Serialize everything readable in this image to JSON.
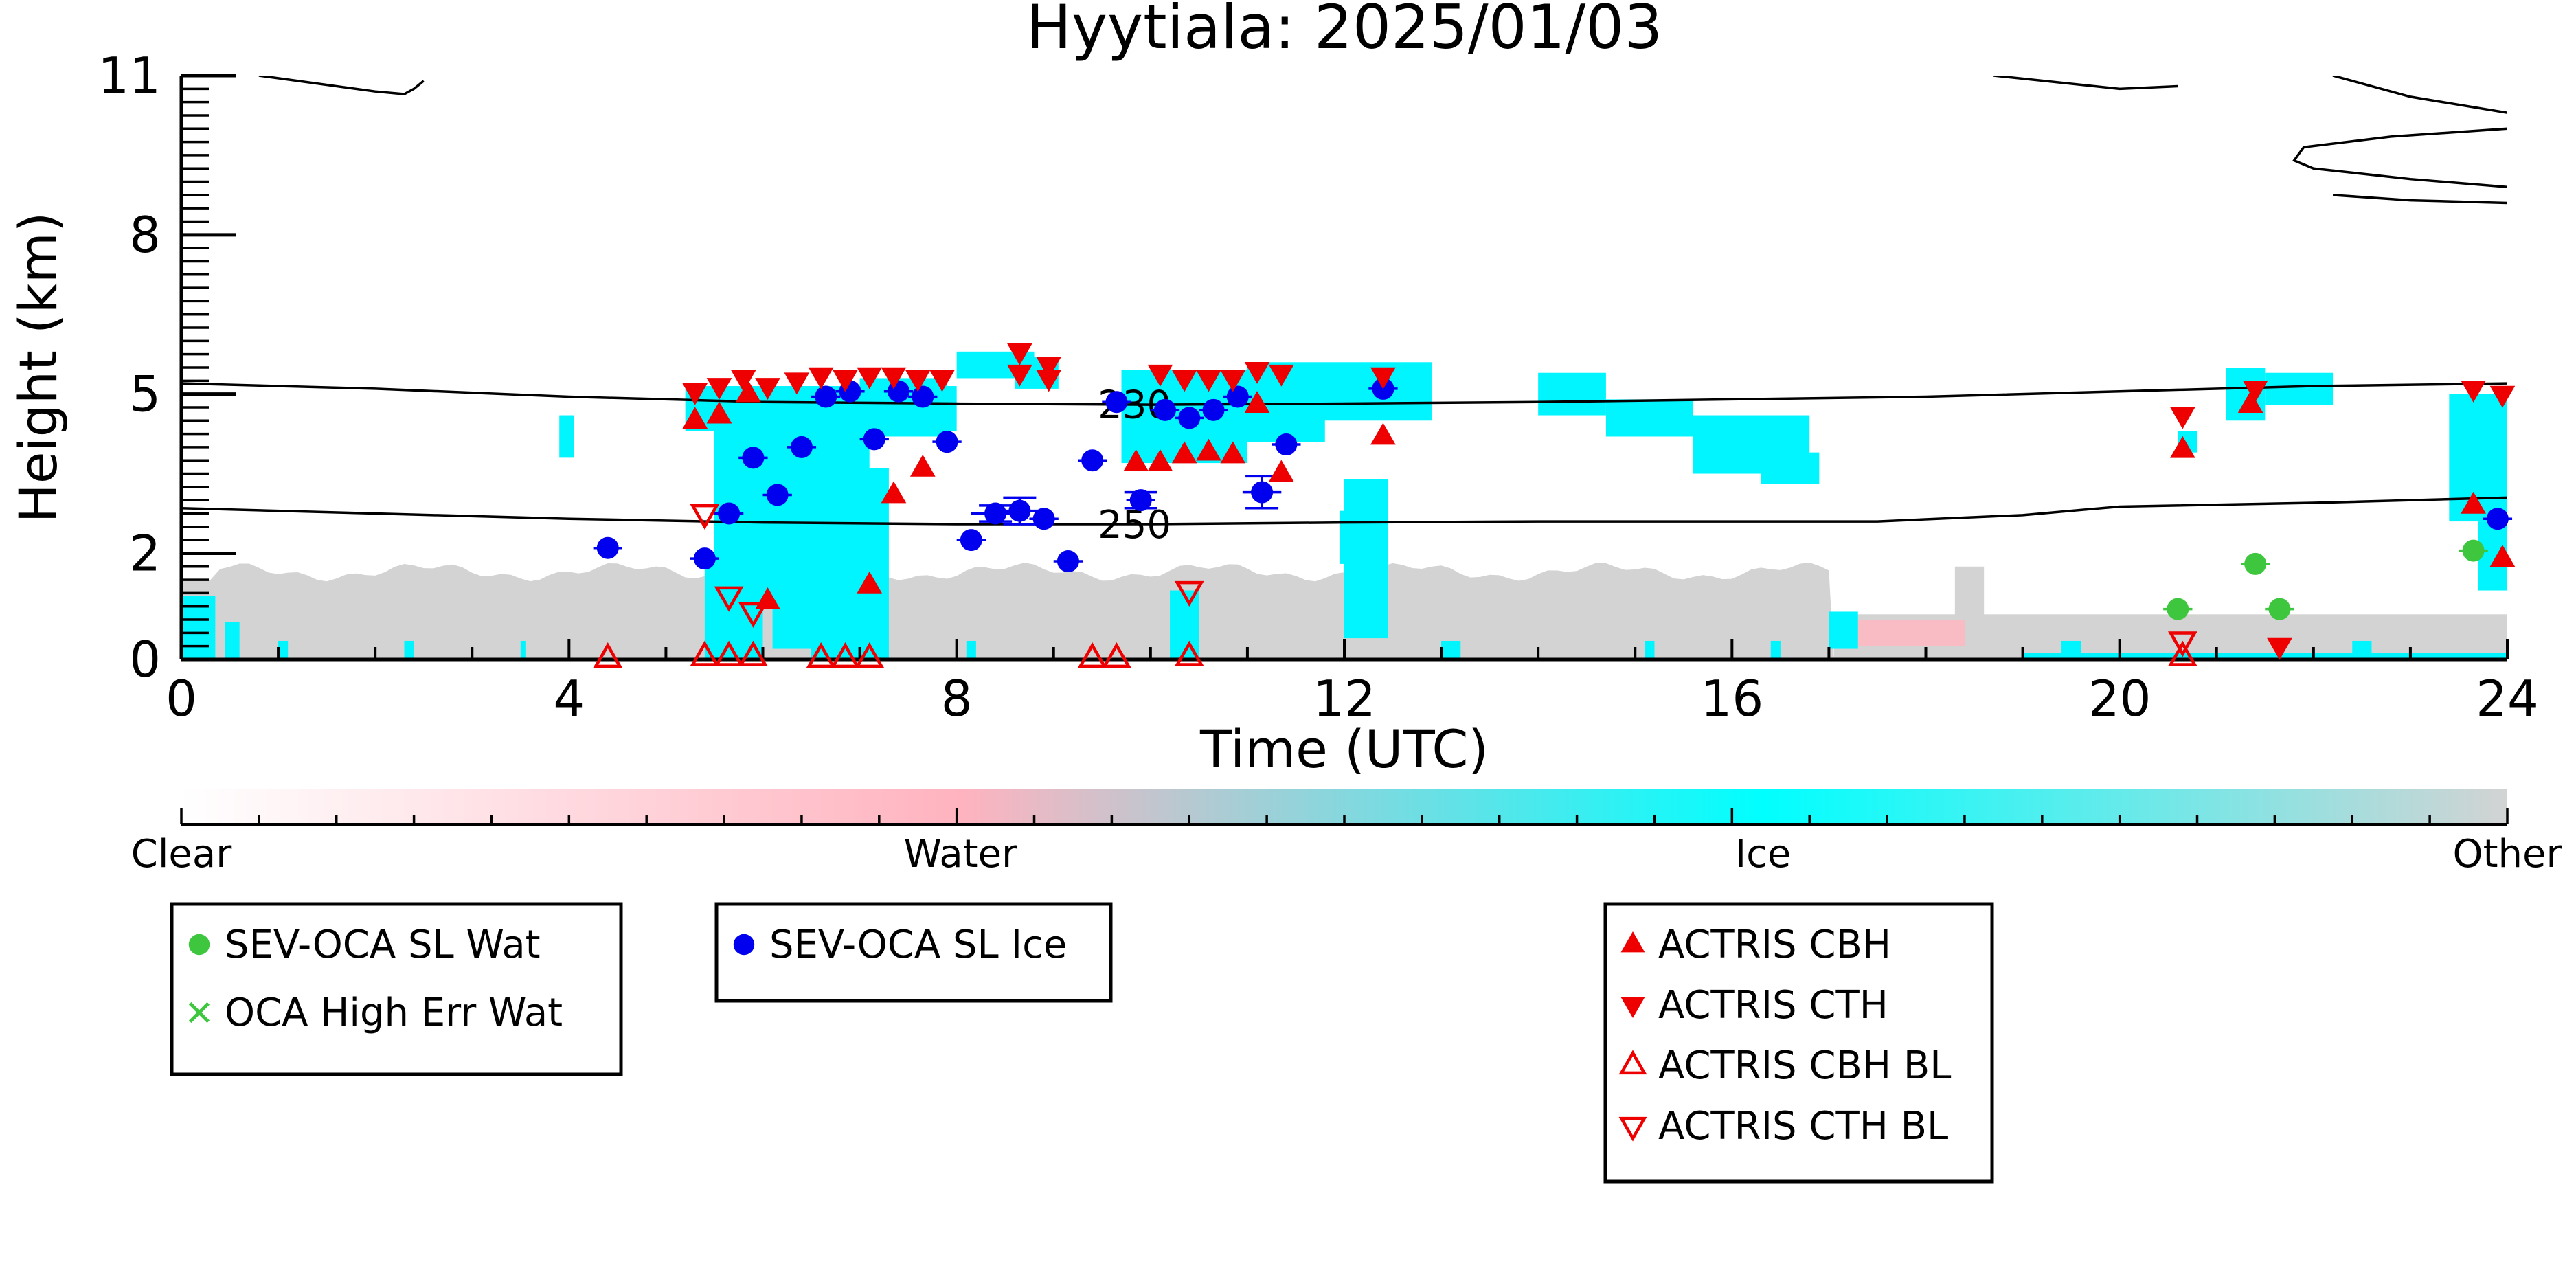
{
  "chart_data": {
    "type": "scatter",
    "title": "Hyytiala: 2025/01/03",
    "xlabel": "Time (UTC)",
    "ylabel": "Height (km)",
    "xlim": [
      0,
      24
    ],
    "ylim": [
      0,
      11
    ],
    "x_ticks": [
      0,
      4,
      8,
      12,
      16,
      20,
      24
    ],
    "y_ticks": [
      0,
      2,
      5,
      8,
      11
    ],
    "colorbar": {
      "labels": [
        "Clear",
        "Water",
        "Ice",
        "Other"
      ],
      "stops": [
        {
          "label": "Clear",
          "color": "#ffffff"
        },
        {
          "label": "Water",
          "color": "#ffb3bf"
        },
        {
          "label": "Ice",
          "color": "#00ffff"
        },
        {
          "label": "Other",
          "color": "#d3d3d3"
        }
      ]
    },
    "colors": {
      "clear": "#ffffff",
      "water": "#ffb6c1",
      "ice": "#00f5ff",
      "other": "#d3d3d3",
      "sev_water": "#3ec63e",
      "sev_ice": "#0000ee",
      "actris": "#ee0000"
    },
    "contours": [
      {
        "label": "230",
        "label_x": 9.4,
        "points": [
          [
            0,
            5.2
          ],
          [
            2,
            5.1
          ],
          [
            4,
            4.95
          ],
          [
            6,
            4.85
          ],
          [
            8,
            4.82
          ],
          [
            10,
            4.8
          ],
          [
            12,
            4.82
          ],
          [
            14,
            4.85
          ],
          [
            16,
            4.9
          ],
          [
            18,
            4.95
          ],
          [
            20,
            5.05
          ],
          [
            22,
            5.15
          ],
          [
            24,
            5.2
          ]
        ]
      },
      {
        "label": "250",
        "label_x": 9.4,
        "points": [
          [
            0,
            2.85
          ],
          [
            2,
            2.75
          ],
          [
            4,
            2.65
          ],
          [
            6,
            2.58
          ],
          [
            8,
            2.55
          ],
          [
            10,
            2.55
          ],
          [
            12,
            2.58
          ],
          [
            14,
            2.6
          ],
          [
            16,
            2.6
          ],
          [
            17.5,
            2.6
          ],
          [
            19,
            2.72
          ],
          [
            20,
            2.88
          ],
          [
            22,
            2.95
          ],
          [
            24,
            3.05
          ]
        ]
      },
      {
        "label": "",
        "label_x": null,
        "points": [
          [
            0.8,
            11.0
          ],
          [
            2.0,
            10.7
          ],
          [
            2.3,
            10.65
          ],
          [
            2.4,
            10.75
          ],
          [
            2.5,
            10.9
          ]
        ]
      },
      {
        "label": "",
        "label_x": null,
        "points": [
          [
            18.7,
            11.0
          ],
          [
            20.0,
            10.75
          ],
          [
            20.6,
            10.8
          ]
        ]
      },
      {
        "label": "",
        "label_x": null,
        "points": [
          [
            22.2,
            11.0
          ],
          [
            23.0,
            10.6
          ],
          [
            24,
            10.3
          ]
        ]
      },
      {
        "label": "",
        "label_x": null,
        "points": [
          [
            24,
            10.0
          ],
          [
            22.8,
            9.85
          ],
          [
            21.9,
            9.65
          ],
          [
            21.8,
            9.4
          ],
          [
            22.0,
            9.25
          ],
          [
            23.0,
            9.05
          ],
          [
            24,
            8.9
          ]
        ]
      },
      {
        "label": "",
        "label_x": null,
        "points": [
          [
            24,
            8.6
          ],
          [
            23.0,
            8.65
          ],
          [
            22.2,
            8.75
          ]
        ]
      }
    ],
    "series": [
      {
        "name": "SEV-OCA SL Wat",
        "marker": "circle",
        "color": "#3ec63e",
        "points": [
          {
            "x": 20.6,
            "y": 0.95,
            "xerr": 0.15
          },
          {
            "x": 21.4,
            "y": 1.8,
            "xerr": 0.15
          },
          {
            "x": 21.65,
            "y": 0.95,
            "xerr": 0.15
          },
          {
            "x": 23.65,
            "y": 2.05,
            "xerr": 0.15
          }
        ]
      },
      {
        "name": "OCA High Err Wat",
        "marker": "x",
        "color": "#3ec63e",
        "points": []
      },
      {
        "name": "SEV-OCA SL Ice",
        "marker": "circle",
        "color": "#0000ee",
        "points": [
          {
            "x": 4.4,
            "y": 2.1,
            "xerr": 0.15
          },
          {
            "x": 5.4,
            "y": 1.9,
            "xerr": 0.15
          },
          {
            "x": 5.65,
            "y": 2.75,
            "xerr": 0.15
          },
          {
            "x": 5.9,
            "y": 3.8,
            "xerr": 0.15
          },
          {
            "x": 6.15,
            "y": 3.1,
            "xerr": 0.15
          },
          {
            "x": 6.4,
            "y": 4.0,
            "xerr": 0.15
          },
          {
            "x": 6.65,
            "y": 4.95,
            "xerr": 0.15
          },
          {
            "x": 6.9,
            "y": 5.05,
            "xerr": 0.15
          },
          {
            "x": 7.15,
            "y": 4.15,
            "xerr": 0.15
          },
          {
            "x": 7.4,
            "y": 5.05,
            "xerr": 0.15
          },
          {
            "x": 7.65,
            "y": 4.95,
            "xerr": 0.15
          },
          {
            "x": 7.9,
            "y": 4.1,
            "xerr": 0.15
          },
          {
            "x": 8.15,
            "y": 2.25,
            "xerr": 0.15
          },
          {
            "x": 8.4,
            "y": 2.75,
            "xerr": 0.25,
            "yerr": 0.15
          },
          {
            "x": 8.65,
            "y": 2.8,
            "xerr": 0.2,
            "yerr": 0.25
          },
          {
            "x": 8.9,
            "y": 2.65,
            "xerr": 0.15
          },
          {
            "x": 9.15,
            "y": 1.85,
            "xerr": 0.15
          },
          {
            "x": 9.4,
            "y": 3.75,
            "xerr": 0.15
          },
          {
            "x": 9.65,
            "y": 4.85,
            "xerr": 0.15
          },
          {
            "x": 9.9,
            "y": 3.0,
            "xerr": 0.15,
            "yerr": 0.15
          },
          {
            "x": 10.15,
            "y": 4.7,
            "xerr": 0.15
          },
          {
            "x": 10.4,
            "y": 4.55,
            "xerr": 0.15
          },
          {
            "x": 10.65,
            "y": 4.7,
            "xerr": 0.15
          },
          {
            "x": 10.9,
            "y": 4.95,
            "xerr": 0.15
          },
          {
            "x": 11.15,
            "y": 3.15,
            "xerr": 0.2,
            "yerr": 0.3
          },
          {
            "x": 11.4,
            "y": 4.05,
            "xerr": 0.15
          },
          {
            "x": 12.4,
            "y": 5.1,
            "xerr": 0.15
          },
          {
            "x": 23.9,
            "y": 2.65,
            "xerr": 0.15
          }
        ]
      },
      {
        "name": "ACTRIS CBH",
        "marker": "triangle-up",
        "color": "#ee0000",
        "points": [
          {
            "x": 5.3,
            "y": 4.5
          },
          {
            "x": 5.55,
            "y": 4.6
          },
          {
            "x": 5.85,
            "y": 5.0
          },
          {
            "x": 6.05,
            "y": 1.1
          },
          {
            "x": 7.1,
            "y": 1.4
          },
          {
            "x": 7.35,
            "y": 3.1
          },
          {
            "x": 7.65,
            "y": 3.6
          },
          {
            "x": 9.85,
            "y": 3.7
          },
          {
            "x": 10.1,
            "y": 3.7
          },
          {
            "x": 10.35,
            "y": 3.85
          },
          {
            "x": 10.6,
            "y": 3.9
          },
          {
            "x": 10.85,
            "y": 3.85
          },
          {
            "x": 11.1,
            "y": 4.8
          },
          {
            "x": 11.35,
            "y": 3.5
          },
          {
            "x": 12.4,
            "y": 4.2
          },
          {
            "x": 20.65,
            "y": 3.95
          },
          {
            "x": 21.35,
            "y": 4.8
          },
          {
            "x": 23.65,
            "y": 2.9
          },
          {
            "x": 23.95,
            "y": 1.9
          }
        ]
      },
      {
        "name": "ACTRIS CTH",
        "marker": "triangle-down",
        "color": "#ee0000",
        "points": [
          {
            "x": 5.3,
            "y": 5.05
          },
          {
            "x": 5.55,
            "y": 5.15
          },
          {
            "x": 5.8,
            "y": 5.3
          },
          {
            "x": 6.05,
            "y": 5.15
          },
          {
            "x": 6.35,
            "y": 5.25
          },
          {
            "x": 6.6,
            "y": 5.35
          },
          {
            "x": 6.85,
            "y": 5.3
          },
          {
            "x": 7.1,
            "y": 5.35
          },
          {
            "x": 7.35,
            "y": 5.35
          },
          {
            "x": 7.6,
            "y": 5.3
          },
          {
            "x": 7.85,
            "y": 5.3
          },
          {
            "x": 8.65,
            "y": 5.8
          },
          {
            "x": 8.65,
            "y": 5.4
          },
          {
            "x": 8.95,
            "y": 5.55
          },
          {
            "x": 8.95,
            "y": 5.3
          },
          {
            "x": 10.1,
            "y": 5.4
          },
          {
            "x": 10.35,
            "y": 5.3
          },
          {
            "x": 10.6,
            "y": 5.3
          },
          {
            "x": 10.85,
            "y": 5.3
          },
          {
            "x": 11.1,
            "y": 5.45
          },
          {
            "x": 11.35,
            "y": 5.4
          },
          {
            "x": 12.4,
            "y": 5.35
          },
          {
            "x": 20.65,
            "y": 4.6
          },
          {
            "x": 21.4,
            "y": 5.1
          },
          {
            "x": 23.65,
            "y": 5.1
          },
          {
            "x": 23.95,
            "y": 5.0
          },
          {
            "x": 21.65,
            "y": 0.25
          }
        ]
      },
      {
        "name": "ACTRIS CBH BL",
        "marker": "triangle-up-open",
        "color": "#ee0000",
        "points": [
          {
            "x": 4.4,
            "y": 0.02
          },
          {
            "x": 5.4,
            "y": 0.05
          },
          {
            "x": 5.65,
            "y": 0.05
          },
          {
            "x": 5.9,
            "y": 0.05
          },
          {
            "x": 6.6,
            "y": 0.02
          },
          {
            "x": 6.85,
            "y": 0.02
          },
          {
            "x": 7.1,
            "y": 0.02
          },
          {
            "x": 9.4,
            "y": 0.02
          },
          {
            "x": 9.65,
            "y": 0.02
          },
          {
            "x": 10.4,
            "y": 0.05
          },
          {
            "x": 20.65,
            "y": 0.05
          }
        ]
      },
      {
        "name": "ACTRIS CTH BL",
        "marker": "triangle-down-open",
        "color": "#ee0000",
        "points": [
          {
            "x": 5.4,
            "y": 2.75
          },
          {
            "x": 5.65,
            "y": 1.2
          },
          {
            "x": 5.9,
            "y": 0.9
          },
          {
            "x": 10.4,
            "y": 1.3
          },
          {
            "x": 20.65,
            "y": 0.35
          }
        ]
      }
    ],
    "legends": [
      {
        "entries": [
          "SEV-OCA SL Wat",
          "OCA High Err Wat"
        ]
      },
      {
        "entries": [
          "SEV-OCA SL Ice"
        ]
      },
      {
        "entries": [
          "ACTRIS CBH",
          "ACTRIS CTH",
          "ACTRIS CBH BL",
          "ACTRIS CTH BL"
        ]
      }
    ]
  }
}
